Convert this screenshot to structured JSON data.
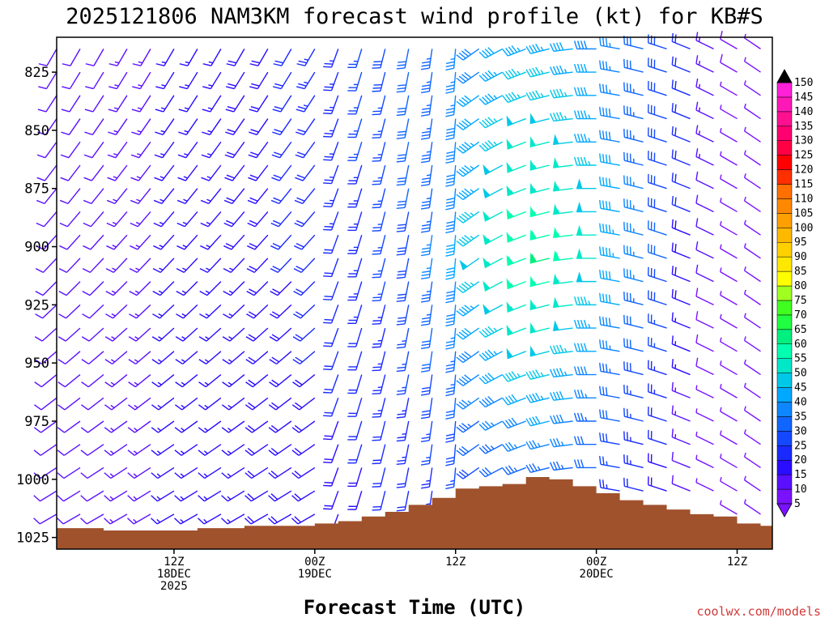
{
  "chart_data": {
    "type": "wind-barb-time-height",
    "title": "2025121806 NAM3KM forecast wind profile (kt) for KB#S",
    "xlabel": "Forecast Time (UTC)",
    "ylabel": "",
    "credit": "coolwx.com/models",
    "units": "kt",
    "x_range_hours": [
      -4,
      57
    ],
    "y_range_hpa": [
      810,
      1030
    ],
    "y_ticks": [
      {
        "value": 825,
        "label": "825"
      },
      {
        "value": 850,
        "label": "850"
      },
      {
        "value": 875,
        "label": "875"
      },
      {
        "value": 900,
        "label": "900"
      },
      {
        "value": 925,
        "label": "925"
      },
      {
        "value": 950,
        "label": "950"
      },
      {
        "value": 975,
        "label": "975"
      },
      {
        "value": 1000,
        "label": "1000"
      },
      {
        "value": 1025,
        "label": "1025"
      }
    ],
    "x_ticks": [
      {
        "hour": 6,
        "lines": [
          "12Z",
          "18DEC",
          "2025"
        ]
      },
      {
        "hour": 18,
        "lines": [
          "00Z",
          "19DEC"
        ]
      },
      {
        "hour": 30,
        "lines": [
          "12Z"
        ]
      },
      {
        "hour": 42,
        "lines": [
          "00Z",
          "20DEC"
        ]
      },
      {
        "hour": 54,
        "lines": [
          "12Z"
        ]
      }
    ],
    "colorbar": {
      "levels": [
        5,
        10,
        15,
        20,
        25,
        30,
        35,
        40,
        45,
        50,
        55,
        60,
        65,
        70,
        75,
        80,
        85,
        90,
        95,
        100,
        105,
        110,
        115,
        120,
        125,
        130,
        135,
        140,
        145,
        150
      ],
      "labels": [
        "5",
        "10",
        "15",
        "20",
        "25",
        "30",
        "35",
        "40",
        "45",
        "50",
        "55",
        "60",
        "65",
        "70",
        "75",
        "80",
        "85",
        "90",
        "95",
        "100",
        "105",
        "110",
        "115",
        "120",
        "125",
        "130",
        "135",
        "140",
        "145",
        "150"
      ],
      "colors": [
        "#7a12ff",
        "#5a10ff",
        "#2a0cff",
        "#1a2aff",
        "#1448ff",
        "#1066ff",
        "#0e86ff",
        "#00a8ff",
        "#00c8e8",
        "#00e8c8",
        "#00ffb0",
        "#00f080",
        "#20ff40",
        "#40ff20",
        "#a0ff20",
        "#ffff00",
        "#ffe800",
        "#ffd000",
        "#ffb800",
        "#ffa000",
        "#ff8800",
        "#ff7000",
        "#ff3000",
        "#ff0000",
        "#ff0044",
        "#ff0070",
        "#ff1090",
        "#ff18b8",
        "#ff20d8",
        "#ff20ff"
      ]
    },
    "wind_barb_grid": {
      "pressure_levels_hpa": [
        815,
        825,
        835,
        845,
        855,
        865,
        875,
        885,
        895,
        905,
        915,
        925,
        935,
        945,
        955,
        965,
        975,
        985,
        995,
        1005,
        1015,
        1025
      ],
      "times_hours": [
        -4,
        -2,
        0,
        2,
        4,
        6,
        8,
        10,
        12,
        14,
        16,
        18,
        20,
        22,
        24,
        26,
        28,
        30,
        32,
        34,
        36,
        38,
        40,
        42,
        44,
        46,
        48,
        50,
        52,
        54,
        56
      ]
    },
    "terrain_pressure_hpa": [
      [
        -4,
        1021
      ],
      [
        0,
        1022
      ],
      [
        4,
        1022
      ],
      [
        8,
        1021
      ],
      [
        12,
        1020
      ],
      [
        16,
        1020
      ],
      [
        18,
        1019
      ],
      [
        20,
        1018
      ],
      [
        22,
        1016
      ],
      [
        24,
        1014
      ],
      [
        26,
        1011
      ],
      [
        28,
        1008
      ],
      [
        30,
        1004
      ],
      [
        32,
        1003
      ],
      [
        34,
        1002
      ],
      [
        36,
        999
      ],
      [
        38,
        1000
      ],
      [
        40,
        1003
      ],
      [
        42,
        1006
      ],
      [
        44,
        1009
      ],
      [
        46,
        1011
      ],
      [
        48,
        1013
      ],
      [
        50,
        1015
      ],
      [
        52,
        1016
      ],
      [
        54,
        1019
      ],
      [
        56,
        1020
      ],
      [
        57,
        1020
      ]
    ]
  }
}
